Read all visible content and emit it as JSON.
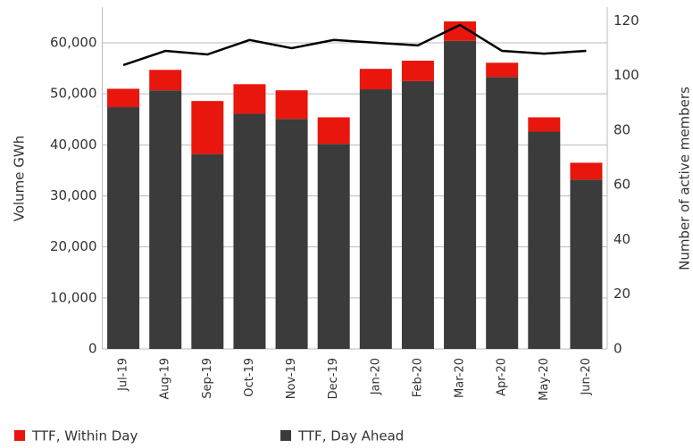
{
  "chart_data": {
    "type": "bar",
    "stacked": true,
    "categories": [
      "Jul-19",
      "Aug-19",
      "Sep-19",
      "Oct-19",
      "Nov-19",
      "Dec-19",
      "Jan-20",
      "Feb-20",
      "Mar-20",
      "Apr-20",
      "May-20",
      "Jun-20"
    ],
    "series": [
      {
        "name": "TTF, Day Ahead",
        "color": "#3b3b3b",
        "values": [
          47400,
          50700,
          38200,
          46100,
          45100,
          40200,
          50900,
          52500,
          60400,
          53300,
          42600,
          33200
        ]
      },
      {
        "name": "TTF, Within Day",
        "color": "#e8160c",
        "values": [
          3600,
          4000,
          10400,
          5800,
          5600,
          5200,
          4000,
          4000,
          3800,
          2800,
          2800,
          3300
        ]
      },
      {
        "type": "line",
        "axis": "y2",
        "color": "#000000",
        "values": [
          103.8,
          109,
          107.7,
          113,
          110,
          113,
          112,
          111,
          118.5,
          109,
          108,
          109
        ]
      }
    ],
    "ylabel": "Volume GWh",
    "y2label": "Number of active members",
    "ylim": [
      0,
      67000
    ],
    "yticks": [
      0,
      {
        "value": 10000,
        "label": "10,000"
      },
      {
        "value": 20000,
        "label": "20,000"
      },
      {
        "value": 30000,
        "label": "30,000"
      },
      {
        "value": 40000,
        "label": "40,000"
      },
      {
        "value": 50000,
        "label": "50,000"
      },
      {
        "value": 60000,
        "label": "60,000"
      }
    ],
    "y2lim": [
      0,
      125
    ],
    "y2ticks": [
      0,
      20,
      40,
      60,
      80,
      100,
      120
    ],
    "grid": true,
    "legend": "bottom-left"
  }
}
